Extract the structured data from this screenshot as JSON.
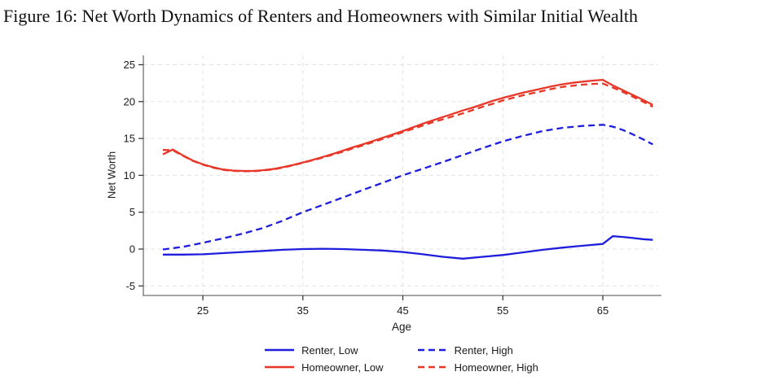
{
  "figure": {
    "title": "Figure 16: Net Worth Dynamics of Renters and Homeowners with Similar Initial Wealth"
  },
  "chart_data": {
    "type": "line",
    "title": "",
    "xlabel": "Age",
    "ylabel": "Net Worth",
    "xlim": [
      19.05,
      70.7
    ],
    "ylim": [
      -6.29,
      26.27
    ],
    "xticks": [
      25,
      35,
      45,
      55,
      65
    ],
    "yticks": [
      -5,
      0,
      5,
      10,
      15,
      20,
      25
    ],
    "grid": "dashed-lightgray",
    "legend_position": "bottom-center-two-columns",
    "colors": {
      "renter_blue": "#1e1edc",
      "homeowner_red": "#e83728",
      "gridline": "#e3e3e3",
      "axis": "#707070",
      "tick": "#3a3a3a",
      "tick_label": "#1a1a1a"
    },
    "series": [
      {
        "name": "Renter, Low",
        "color": "#1e1edc",
        "style": "solid",
        "points": [
          [
            21,
            -0.75
          ],
          [
            23,
            -0.75
          ],
          [
            25,
            -0.7
          ],
          [
            27,
            -0.55
          ],
          [
            29,
            -0.4
          ],
          [
            31,
            -0.25
          ],
          [
            33,
            -0.1
          ],
          [
            35,
            0.0
          ],
          [
            37,
            0.05
          ],
          [
            39,
            0.0
          ],
          [
            41,
            -0.1
          ],
          [
            43,
            -0.2
          ],
          [
            45,
            -0.4
          ],
          [
            47,
            -0.7
          ],
          [
            49,
            -1.05
          ],
          [
            51,
            -1.3
          ],
          [
            53,
            -1.05
          ],
          [
            55,
            -0.8
          ],
          [
            57,
            -0.45
          ],
          [
            59,
            -0.1
          ],
          [
            61,
            0.2
          ],
          [
            63,
            0.45
          ],
          [
            65,
            0.7
          ],
          [
            66,
            1.75
          ],
          [
            67,
            1.65
          ],
          [
            68,
            1.5
          ],
          [
            69,
            1.35
          ],
          [
            70,
            1.25
          ]
        ]
      },
      {
        "name": "Renter, High",
        "color": "#1e1edc",
        "style": "dashed",
        "points": [
          [
            21,
            -0.05
          ],
          [
            23,
            0.3
          ],
          [
            25,
            0.85
          ],
          [
            27,
            1.45
          ],
          [
            29,
            2.1
          ],
          [
            31,
            2.85
          ],
          [
            33,
            3.85
          ],
          [
            35,
            5.0
          ],
          [
            37,
            6.0
          ],
          [
            39,
            7.0
          ],
          [
            41,
            8.0
          ],
          [
            43,
            9.0
          ],
          [
            45,
            10.0
          ],
          [
            47,
            10.9
          ],
          [
            49,
            11.8
          ],
          [
            51,
            12.75
          ],
          [
            53,
            13.7
          ],
          [
            55,
            14.6
          ],
          [
            57,
            15.35
          ],
          [
            59,
            16.0
          ],
          [
            61,
            16.45
          ],
          [
            63,
            16.7
          ],
          [
            65,
            16.85
          ],
          [
            66,
            16.6
          ],
          [
            67,
            16.15
          ],
          [
            68,
            15.55
          ],
          [
            69,
            14.9
          ],
          [
            70,
            14.2
          ]
        ]
      },
      {
        "name": "Homeowner, Low",
        "color": "#e83728",
        "style": "solid",
        "points": [
          [
            21,
            12.85
          ],
          [
            22,
            13.5
          ],
          [
            23,
            12.7
          ],
          [
            24,
            12.0
          ],
          [
            25,
            11.5
          ],
          [
            26,
            11.1
          ],
          [
            27,
            10.8
          ],
          [
            28,
            10.65
          ],
          [
            29,
            10.6
          ],
          [
            30,
            10.6
          ],
          [
            31,
            10.7
          ],
          [
            32,
            10.85
          ],
          [
            33,
            11.1
          ],
          [
            34,
            11.4
          ],
          [
            35,
            11.75
          ],
          [
            36,
            12.1
          ],
          [
            37,
            12.5
          ],
          [
            38,
            12.9
          ],
          [
            39,
            13.35
          ],
          [
            40,
            13.8
          ],
          [
            41,
            14.2
          ],
          [
            42,
            14.65
          ],
          [
            43,
            15.1
          ],
          [
            44,
            15.55
          ],
          [
            45,
            16.0
          ],
          [
            46,
            16.5
          ],
          [
            47,
            17.0
          ],
          [
            48,
            17.45
          ],
          [
            49,
            17.9
          ],
          [
            50,
            18.35
          ],
          [
            51,
            18.8
          ],
          [
            52,
            19.2
          ],
          [
            53,
            19.65
          ],
          [
            54,
            20.1
          ],
          [
            55,
            20.5
          ],
          [
            56,
            20.85
          ],
          [
            57,
            21.2
          ],
          [
            58,
            21.5
          ],
          [
            59,
            21.8
          ],
          [
            60,
            22.1
          ],
          [
            61,
            22.35
          ],
          [
            62,
            22.55
          ],
          [
            63,
            22.7
          ],
          [
            64,
            22.85
          ],
          [
            65,
            22.95
          ],
          [
            66,
            22.2
          ],
          [
            67,
            21.55
          ],
          [
            68,
            20.9
          ],
          [
            69,
            20.25
          ],
          [
            70,
            19.55
          ]
        ]
      },
      {
        "name": "Homeowner, High",
        "color": "#e83728",
        "style": "dashed",
        "points": [
          [
            21,
            13.45
          ],
          [
            22,
            13.4
          ],
          [
            23,
            12.65
          ],
          [
            24,
            11.95
          ],
          [
            25,
            11.45
          ],
          [
            26,
            11.05
          ],
          [
            27,
            10.75
          ],
          [
            28,
            10.6
          ],
          [
            29,
            10.55
          ],
          [
            30,
            10.55
          ],
          [
            31,
            10.65
          ],
          [
            32,
            10.8
          ],
          [
            33,
            11.05
          ],
          [
            34,
            11.35
          ],
          [
            35,
            11.7
          ],
          [
            36,
            12.05
          ],
          [
            37,
            12.4
          ],
          [
            38,
            12.8
          ],
          [
            39,
            13.2
          ],
          [
            40,
            13.65
          ],
          [
            41,
            14.05
          ],
          [
            42,
            14.5
          ],
          [
            43,
            14.95
          ],
          [
            44,
            15.4
          ],
          [
            45,
            15.85
          ],
          [
            46,
            16.3
          ],
          [
            47,
            16.75
          ],
          [
            48,
            17.2
          ],
          [
            49,
            17.6
          ],
          [
            50,
            18.0
          ],
          [
            51,
            18.4
          ],
          [
            52,
            18.85
          ],
          [
            53,
            19.3
          ],
          [
            54,
            19.7
          ],
          [
            55,
            20.15
          ],
          [
            56,
            20.5
          ],
          [
            57,
            20.85
          ],
          [
            58,
            21.15
          ],
          [
            59,
            21.45
          ],
          [
            60,
            21.75
          ],
          [
            61,
            22.0
          ],
          [
            62,
            22.15
          ],
          [
            63,
            22.3
          ],
          [
            64,
            22.4
          ],
          [
            65,
            22.45
          ],
          [
            66,
            21.9
          ],
          [
            67,
            21.3
          ],
          [
            68,
            20.65
          ],
          [
            69,
            20.0
          ],
          [
            70,
            19.3
          ]
        ]
      }
    ]
  }
}
